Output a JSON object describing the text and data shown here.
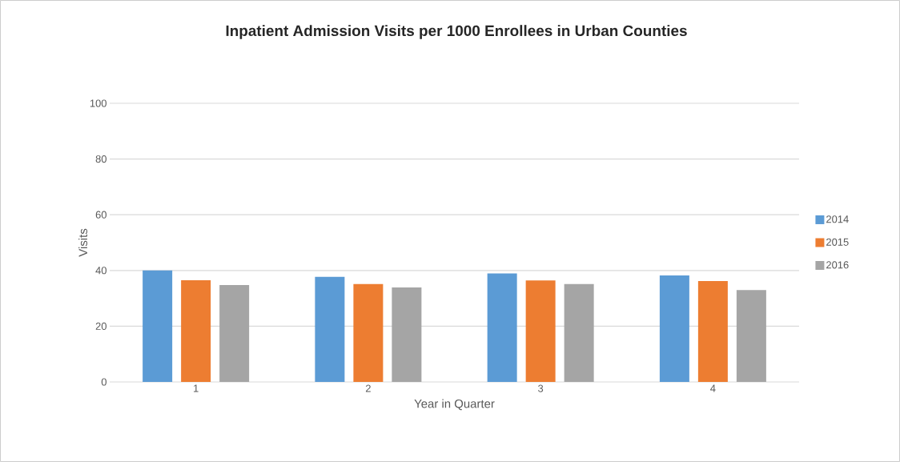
{
  "chart_data": {
    "type": "bar",
    "title": "Inpatient Admission Visits per 1000 Enrollees in Urban Counties",
    "xlabel": "Year in Quarter",
    "ylabel": "Visits",
    "categories": [
      "1",
      "2",
      "3",
      "4"
    ],
    "series": [
      {
        "name": "2014",
        "color": "#5b9bd5",
        "values": [
          40.0,
          37.7,
          38.9,
          38.2
        ]
      },
      {
        "name": "2015",
        "color": "#ed7d31",
        "values": [
          36.5,
          35.1,
          36.4,
          36.2
        ]
      },
      {
        "name": "2016",
        "color": "#a5a5a5",
        "values": [
          34.8,
          33.9,
          35.1,
          33.0
        ]
      }
    ],
    "ylim": [
      0,
      100
    ],
    "yticks": [
      0,
      20,
      40,
      60,
      80,
      100
    ],
    "grid": "y",
    "legend": "right"
  }
}
